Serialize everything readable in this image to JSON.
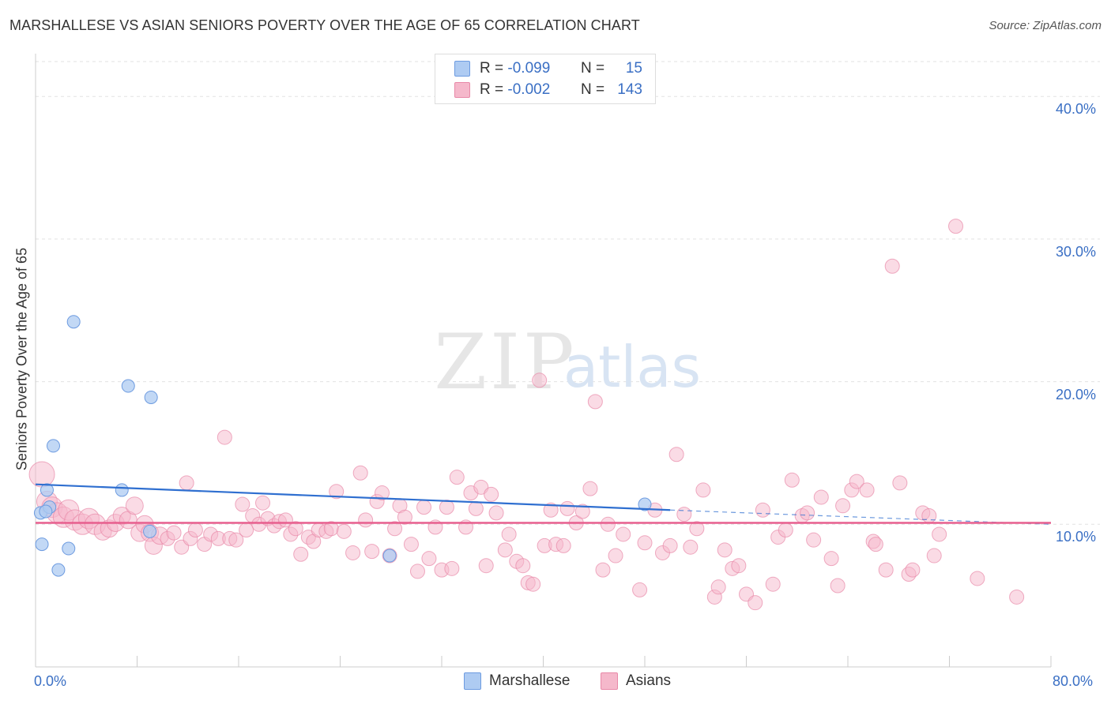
{
  "title": "MARSHALLESE VS ASIAN SENIORS POVERTY OVER THE AGE OF 65 CORRELATION CHART",
  "source": "Source: ZipAtlas.com",
  "watermark": {
    "zip": "ZIP",
    "atlas": "atlas"
  },
  "legend_top": [
    {
      "r_label": "R =",
      "r_value": "-0.099",
      "n_label": "N =",
      "n_value": "15",
      "color": "#aecbf2"
    },
    {
      "r_label": "R =",
      "r_value": "-0.002",
      "n_label": "N =",
      "n_value": "143",
      "color": "#f5b8cb"
    }
  ],
  "legend_bottom": [
    "Marshallese",
    "Asians"
  ],
  "chart_data": {
    "type": "scatter",
    "title": "MARSHALLESE VS ASIAN SENIORS POVERTY OVER THE AGE OF 65 CORRELATION CHART",
    "xlabel": "",
    "ylabel": "Seniors Poverty Over the Age of 65",
    "xlim": [
      0,
      80
    ],
    "ylim": [
      0,
      43
    ],
    "x_tick_labels": [
      "0.0%",
      "80.0%"
    ],
    "y_tick_labels": [
      "10.0%",
      "20.0%",
      "30.0%",
      "40.0%"
    ],
    "y_ticks": [
      10,
      20,
      30,
      40
    ],
    "grid": true,
    "legend_position": "bottom",
    "colors": {
      "marshallese_fill": "#aecbf2",
      "marshallese_stroke": "#6d9be0",
      "marshallese_line": "#2f6fd0",
      "asians_fill": "#f5b8cb",
      "asians_stroke": "#e889a8",
      "asians_line": "#e75f8e",
      "axis_label": "#3a6fc4"
    },
    "series": [
      {
        "name": "Marshallese",
        "points": [
          [
            0.4,
            10.8
          ],
          [
            0.5,
            8.6
          ],
          [
            0.9,
            12.4
          ],
          [
            1.1,
            11.2
          ],
          [
            1.4,
            15.5
          ],
          [
            1.8,
            6.8
          ],
          [
            2.6,
            8.3
          ],
          [
            3.0,
            24.2
          ],
          [
            6.8,
            12.4
          ],
          [
            7.3,
            19.7
          ],
          [
            9.1,
            18.9
          ],
          [
            9.0,
            9.5
          ],
          [
            27.9,
            7.8
          ],
          [
            48.0,
            11.4
          ],
          [
            0.8,
            10.9
          ]
        ],
        "trend": {
          "x": [
            0,
            50
          ],
          "y": [
            12.8,
            11.0
          ],
          "dashed_to": [
            80,
            10.0
          ]
        }
      },
      {
        "name": "Asians",
        "points": [
          [
            0.5,
            13.5
          ],
          [
            0.9,
            11.6
          ],
          [
            1.3,
            11.2
          ],
          [
            1.7,
            10.8
          ],
          [
            2.2,
            10.5
          ],
          [
            2.6,
            11.0
          ],
          [
            3.1,
            10.3
          ],
          [
            3.7,
            10.0
          ],
          [
            4.2,
            10.4
          ],
          [
            4.7,
            10.0
          ],
          [
            5.3,
            9.5
          ],
          [
            5.8,
            9.7
          ],
          [
            6.3,
            10.1
          ],
          [
            6.8,
            10.6
          ],
          [
            7.3,
            10.3
          ],
          [
            7.8,
            11.3
          ],
          [
            8.2,
            9.4
          ],
          [
            8.6,
            10.0
          ],
          [
            9.0,
            9.4
          ],
          [
            9.3,
            8.5
          ],
          [
            9.8,
            9.2
          ],
          [
            10.4,
            9.0
          ],
          [
            10.9,
            9.4
          ],
          [
            11.5,
            8.4
          ],
          [
            11.9,
            12.9
          ],
          [
            12.2,
            9.0
          ],
          [
            12.6,
            9.6
          ],
          [
            13.3,
            8.6
          ],
          [
            13.8,
            9.3
          ],
          [
            14.4,
            9.0
          ],
          [
            14.9,
            16.1
          ],
          [
            15.3,
            9.0
          ],
          [
            15.8,
            8.9
          ],
          [
            16.3,
            11.4
          ],
          [
            16.6,
            9.6
          ],
          [
            17.1,
            10.6
          ],
          [
            17.6,
            10.0
          ],
          [
            17.9,
            11.5
          ],
          [
            18.3,
            10.4
          ],
          [
            18.8,
            9.9
          ],
          [
            19.2,
            10.2
          ],
          [
            19.7,
            10.3
          ],
          [
            20.1,
            9.3
          ],
          [
            20.5,
            9.7
          ],
          [
            20.9,
            7.9
          ],
          [
            21.5,
            9.1
          ],
          [
            21.9,
            8.8
          ],
          [
            22.3,
            9.6
          ],
          [
            22.9,
            9.5
          ],
          [
            23.3,
            9.7
          ],
          [
            23.7,
            12.3
          ],
          [
            24.3,
            9.5
          ],
          [
            25.0,
            8.0
          ],
          [
            25.6,
            13.6
          ],
          [
            26.0,
            10.3
          ],
          [
            26.5,
            8.1
          ],
          [
            26.9,
            11.6
          ],
          [
            27.3,
            12.2
          ],
          [
            27.9,
            7.8
          ],
          [
            28.3,
            9.7
          ],
          [
            28.7,
            11.3
          ],
          [
            29.1,
            10.5
          ],
          [
            29.6,
            8.6
          ],
          [
            30.1,
            6.7
          ],
          [
            30.6,
            11.2
          ],
          [
            31.0,
            7.6
          ],
          [
            31.5,
            9.8
          ],
          [
            32.0,
            6.8
          ],
          [
            32.4,
            11.2
          ],
          [
            32.8,
            6.9
          ],
          [
            33.2,
            13.3
          ],
          [
            33.9,
            9.8
          ],
          [
            34.3,
            12.2
          ],
          [
            34.7,
            11.1
          ],
          [
            35.1,
            12.6
          ],
          [
            35.5,
            7.1
          ],
          [
            35.9,
            12.1
          ],
          [
            36.3,
            10.8
          ],
          [
            37.0,
            8.2
          ],
          [
            37.3,
            9.3
          ],
          [
            37.9,
            7.4
          ],
          [
            38.4,
            7.1
          ],
          [
            38.8,
            5.9
          ],
          [
            39.2,
            5.8
          ],
          [
            39.7,
            20.1
          ],
          [
            40.1,
            8.5
          ],
          [
            40.6,
            11.0
          ],
          [
            41.0,
            8.6
          ],
          [
            41.6,
            8.5
          ],
          [
            41.9,
            11.1
          ],
          [
            42.6,
            10.1
          ],
          [
            43.1,
            10.9
          ],
          [
            43.7,
            12.5
          ],
          [
            44.1,
            18.6
          ],
          [
            44.7,
            6.8
          ],
          [
            45.1,
            10.0
          ],
          [
            45.7,
            7.8
          ],
          [
            46.3,
            9.3
          ],
          [
            47.6,
            5.4
          ],
          [
            48.0,
            8.7
          ],
          [
            48.8,
            11.0
          ],
          [
            49.4,
            8.0
          ],
          [
            50.0,
            8.5
          ],
          [
            50.5,
            14.9
          ],
          [
            51.1,
            10.7
          ],
          [
            51.6,
            8.4
          ],
          [
            52.1,
            9.7
          ],
          [
            52.6,
            12.4
          ],
          [
            53.5,
            4.9
          ],
          [
            53.8,
            5.6
          ],
          [
            54.3,
            8.2
          ],
          [
            54.9,
            6.9
          ],
          [
            55.4,
            7.1
          ],
          [
            56.0,
            5.1
          ],
          [
            56.7,
            4.5
          ],
          [
            57.3,
            11.0
          ],
          [
            58.1,
            5.8
          ],
          [
            58.5,
            9.1
          ],
          [
            59.1,
            9.6
          ],
          [
            59.6,
            13.1
          ],
          [
            60.4,
            10.6
          ],
          [
            60.8,
            10.8
          ],
          [
            61.3,
            8.9
          ],
          [
            61.9,
            11.9
          ],
          [
            62.7,
            7.6
          ],
          [
            63.2,
            5.7
          ],
          [
            63.6,
            11.3
          ],
          [
            64.3,
            12.4
          ],
          [
            64.7,
            13.0
          ],
          [
            65.5,
            12.4
          ],
          [
            66.0,
            8.8
          ],
          [
            66.2,
            8.6
          ],
          [
            67.0,
            6.8
          ],
          [
            67.5,
            28.1
          ],
          [
            68.1,
            12.9
          ],
          [
            68.8,
            6.5
          ],
          [
            69.1,
            6.8
          ],
          [
            69.9,
            10.8
          ],
          [
            70.4,
            10.6
          ],
          [
            70.8,
            7.8
          ],
          [
            71.2,
            9.3
          ],
          [
            72.5,
            30.9
          ],
          [
            74.2,
            6.2
          ],
          [
            77.3,
            4.9
          ]
        ],
        "trend": {
          "x": [
            0,
            80
          ],
          "y": [
            10.1,
            10.1
          ]
        }
      }
    ]
  }
}
